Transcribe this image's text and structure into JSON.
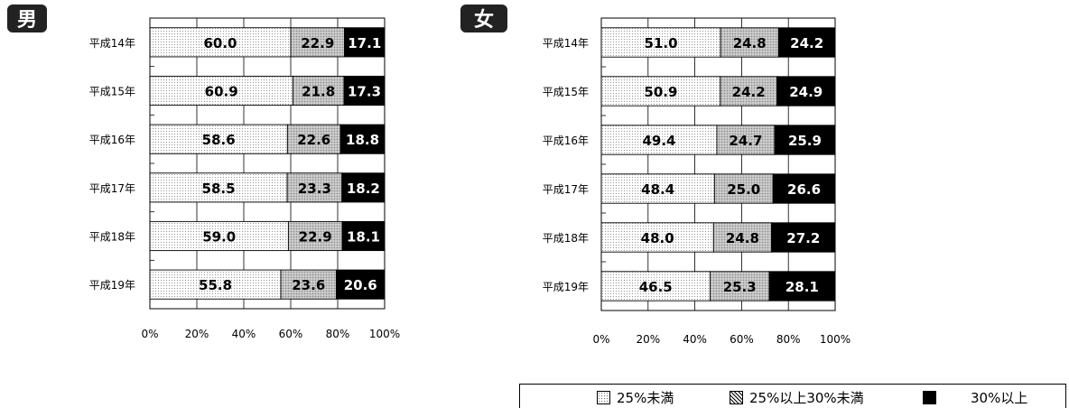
{
  "chart_data": [
    {
      "type": "bar",
      "orientation": "horizontal",
      "stacked": "percent",
      "title": "男",
      "categories": [
        "平成14年",
        "平成15年",
        "平成16年",
        "平成17年",
        "平成18年",
        "平成19年"
      ],
      "series": [
        {
          "name": "25%未満",
          "values": [
            60.0,
            60.9,
            58.6,
            58.5,
            59.0,
            55.8
          ]
        },
        {
          "name": "25%以上30%未満",
          "values": [
            22.9,
            21.8,
            22.6,
            23.3,
            22.9,
            23.6
          ]
        },
        {
          "name": "30%以上",
          "values": [
            17.1,
            17.3,
            18.8,
            18.2,
            18.1,
            20.6
          ]
        }
      ],
      "xlim": [
        0,
        100
      ],
      "xticks": [
        "0%",
        "20%",
        "40%",
        "60%",
        "80%",
        "100%"
      ],
      "grid": true
    },
    {
      "type": "bar",
      "orientation": "horizontal",
      "stacked": "percent",
      "title": "女",
      "categories": [
        "平成14年",
        "平成15年",
        "平成16年",
        "平成17年",
        "平成18年",
        "平成19年"
      ],
      "series": [
        {
          "name": "25%未満",
          "values": [
            51.0,
            50.9,
            49.4,
            48.4,
            48.0,
            46.5
          ]
        },
        {
          "name": "25%以上30%未満",
          "values": [
            24.8,
            24.2,
            24.7,
            25.0,
            24.8,
            25.3
          ]
        },
        {
          "name": "30%以上",
          "values": [
            24.2,
            24.9,
            25.9,
            26.6,
            27.2,
            28.1
          ]
        }
      ],
      "xlim": [
        0,
        100
      ],
      "xticks": [
        "0%",
        "20%",
        "40%",
        "60%",
        "80%",
        "100%"
      ],
      "grid": true
    }
  ],
  "legend": {
    "placement": "bottom-right",
    "items": [
      "25%未満",
      "25%以上30%未満",
      "30%以上"
    ]
  },
  "colors": {
    "series1_fill": "#ffffff",
    "series1_pattern": "#777777",
    "series2_fill": "#c8c8c8",
    "series3_fill": "#000000",
    "title_badge": "#222222"
  }
}
